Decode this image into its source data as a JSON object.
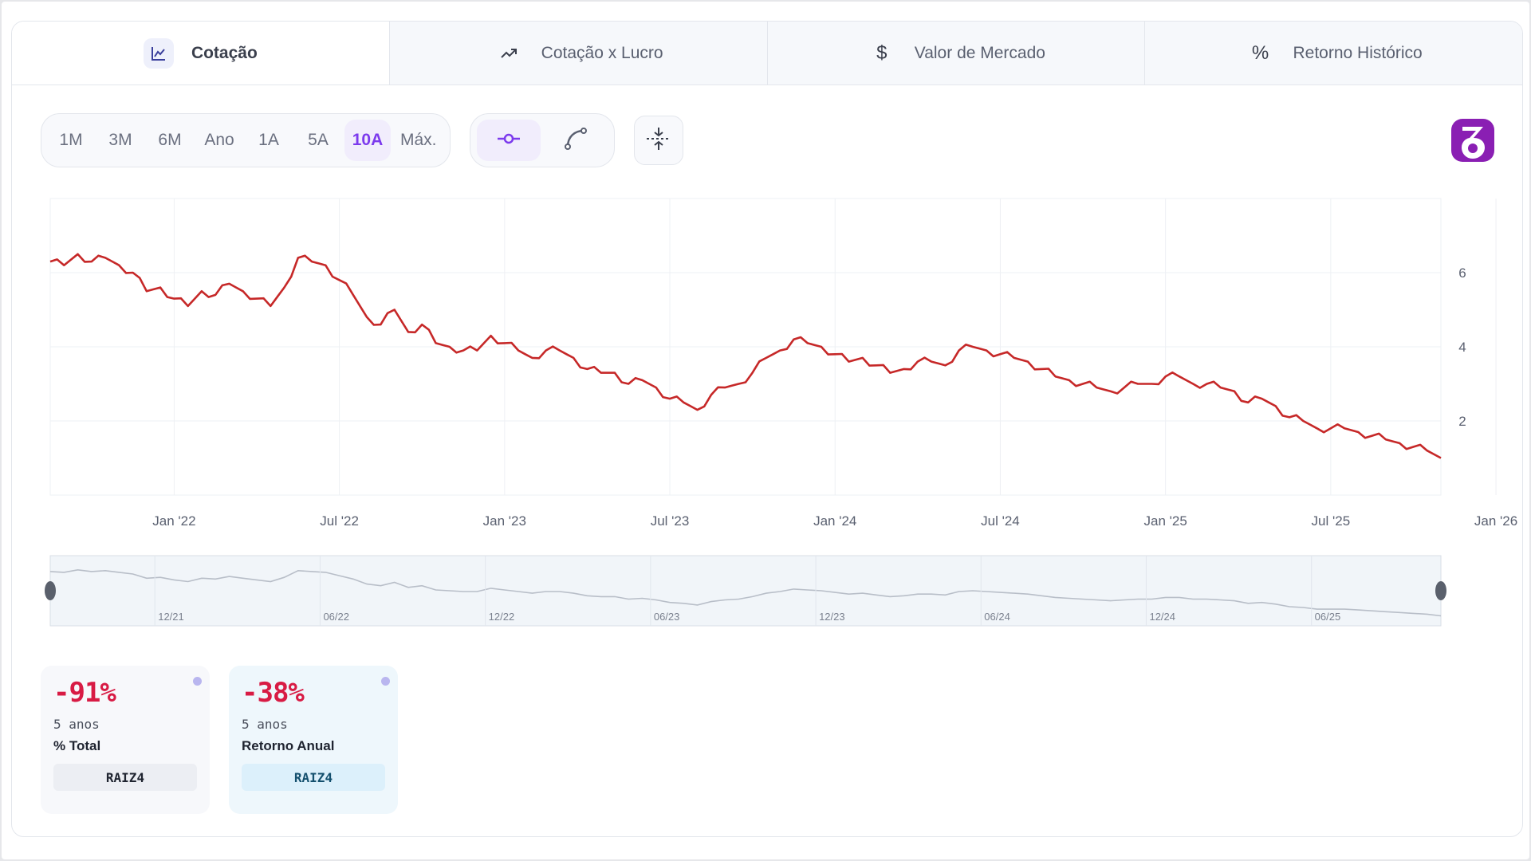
{
  "tabs": [
    {
      "label": "Cotação",
      "icon": "line-chart-icon",
      "active": true
    },
    {
      "label": "Cotação x Lucro",
      "icon": "trend-up-icon",
      "active": false
    },
    {
      "label": "Valor de Mercado",
      "icon": "dollar-icon",
      "active": false
    },
    {
      "label": "Retorno Histórico",
      "icon": "percent-icon",
      "active": false
    }
  ],
  "ranges": [
    "1M",
    "3M",
    "6M",
    "Ano",
    "1A",
    "5A",
    "10A",
    "Máx."
  ],
  "active_range": "10A",
  "chart_data": {
    "type": "line",
    "line_color": "#c62828",
    "yticks": [
      2,
      4,
      6
    ],
    "ylim": [
      0,
      8
    ],
    "xticks": [
      "Jan '22",
      "Jul '22",
      "Jan '23",
      "Jul '23",
      "Jan '24",
      "Jul '24",
      "Jan '25",
      "Jul '25",
      "Jan '26"
    ],
    "navigator_ticks": [
      "12/21",
      "06/22",
      "12/22",
      "06/23",
      "12/23",
      "06/24",
      "12/24",
      "06/25"
    ],
    "series": [
      {
        "x_months": [
          0,
          0.5,
          1,
          1.5,
          2,
          2.5,
          3,
          3.5,
          4,
          4.5,
          5,
          5.5,
          6,
          6.5,
          7,
          7.5,
          8,
          8.5,
          9,
          9.5,
          10,
          10.5,
          11,
          11.5,
          12,
          12.5,
          13,
          13.5,
          14,
          14.5,
          15,
          15.5,
          16,
          16.5,
          17,
          17.5,
          18,
          18.5,
          19,
          19.5,
          20,
          20.5,
          21,
          21.5,
          22,
          22.5,
          23,
          23.5,
          24,
          24.5,
          25,
          25.5,
          26,
          26.5,
          27,
          27.5,
          28,
          28.5,
          29,
          29.5,
          30,
          30.5,
          31,
          31.5,
          32,
          32.5,
          33,
          33.5,
          34,
          34.5,
          35,
          35.5,
          36,
          36.5,
          37,
          37.5,
          38,
          38.5,
          39,
          39.5,
          40,
          40.5,
          41,
          41.5,
          42,
          42.5,
          43,
          43.5,
          44,
          44.5,
          45,
          45.5,
          46,
          46.5,
          47,
          47.5,
          48,
          48.5,
          49,
          49.5,
          50,
          50.5
        ],
        "values": [
          6.3,
          6.2,
          6.5,
          6.3,
          6.4,
          6.2,
          6.0,
          5.5,
          5.6,
          5.3,
          5.1,
          5.5,
          5.4,
          5.7,
          5.5,
          5.3,
          5.1,
          5.6,
          6.4,
          6.3,
          6.2,
          5.8,
          5.4,
          4.8,
          4.6,
          5.0,
          4.4,
          4.6,
          4.1,
          4.0,
          3.9,
          3.9,
          4.3,
          4.1,
          3.9,
          3.7,
          3.9,
          3.9,
          3.7,
          3.4,
          3.3,
          3.3,
          3.0,
          3.1,
          2.9,
          2.6,
          2.5,
          2.3,
          2.7,
          2.9,
          3.0,
          3.3,
          3.7,
          3.9,
          4.2,
          4.1,
          4.0,
          3.8,
          3.6,
          3.7,
          3.5,
          3.3,
          3.4,
          3.6,
          3.6,
          3.5,
          3.9,
          4.0,
          3.9,
          3.8,
          3.7,
          3.6,
          3.4,
          3.2,
          3.1,
          3.0,
          2.9,
          2.8,
          2.9,
          3.0,
          3.0,
          3.2,
          3.2,
          3.0,
          3.0,
          2.9,
          2.8,
          2.5,
          2.6,
          2.4,
          2.1,
          2.0,
          1.8,
          1.8,
          1.8,
          1.7,
          1.6,
          1.5,
          1.4,
          1.3,
          1.2,
          1.0
        ]
      }
    ]
  },
  "stats": [
    {
      "value": "-91%",
      "period": "5 anos",
      "label": "% Total",
      "ticker": "RAIZ4"
    },
    {
      "value": "-38%",
      "period": "5 anos",
      "label": "Retorno Anual",
      "ticker": "RAIZ4"
    }
  ]
}
